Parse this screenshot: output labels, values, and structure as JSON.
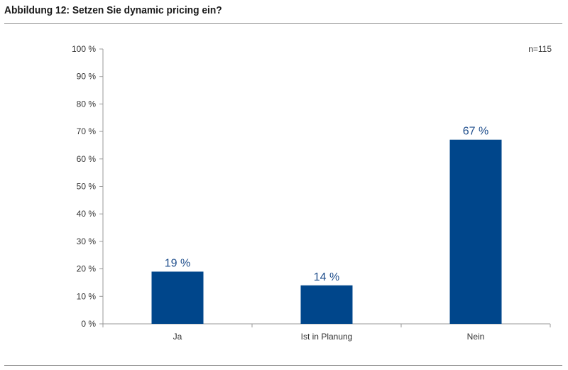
{
  "header": {
    "title": "Abbildung 12: Setzen Sie dynamic pricing ein?"
  },
  "colors": {
    "bar": "#00468b",
    "axis": "#999999",
    "data_label": "#1f4e8c"
  },
  "chart_data": {
    "type": "bar",
    "title": "Abbildung 12: Setzen Sie dynamic pricing ein?",
    "note": "n=115",
    "categories": [
      "Ja",
      "Ist in Planung",
      "Nein"
    ],
    "values": [
      19,
      14,
      67
    ],
    "data_labels": [
      "19 %",
      "14 %",
      "67 %"
    ],
    "ylim": [
      0,
      100
    ],
    "yticks": [
      0,
      10,
      20,
      30,
      40,
      50,
      60,
      70,
      80,
      90,
      100
    ],
    "ytick_labels": [
      "0 %",
      "10 %",
      "20 %",
      "30 %",
      "40 %",
      "50 %",
      "60 %",
      "70 %",
      "80 %",
      "90 %",
      "100 %"
    ],
    "xlabel": "",
    "ylabel": "",
    "grid": false,
    "legend": "none"
  }
}
